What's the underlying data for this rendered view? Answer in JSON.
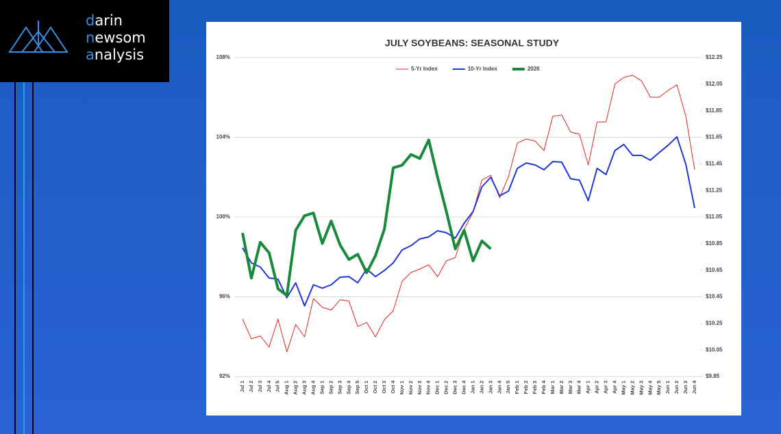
{
  "logo": {
    "lines": [
      "darin",
      "newsom",
      "analysis"
    ]
  },
  "chart_data": {
    "type": "line",
    "title": "JULY SOYBEANS: SEASONAL STUDY",
    "categories": [
      "Jul 1",
      "Jul 2",
      "Jul 3",
      "Jul 4",
      "Jul 5",
      "Aug 1",
      "Aug 2",
      "Aug 3",
      "Aug 4",
      "Sep 1",
      "Sep 2",
      "Sep 3",
      "Sep 4",
      "Sep 5",
      "Oct 1",
      "Oct 2",
      "Oct 3",
      "Oct 4",
      "Nov 1",
      "Nov 2",
      "Nov 3",
      "Nov 4",
      "Dec 1",
      "Dec 2",
      "Dec 3",
      "Dec 4",
      "Jan 1",
      "Jan 2",
      "Jan 3",
      "Jan 4",
      "Jan 5",
      "Feb 1",
      "Feb 2",
      "Feb 3",
      "Feb 4",
      "Mar 1",
      "Mar 2",
      "Mar 3",
      "Mar 4",
      "Apr 1",
      "Apr 2",
      "Apr 3",
      "Apr 4",
      "May 1",
      "May 2",
      "May 3",
      "May 4",
      "May 5",
      "Jun 1",
      "Jun 2",
      "Jun 3",
      "Jun 4"
    ],
    "series": [
      {
        "name": "5-Yr Index",
        "color": "#e8221f",
        "width": 1,
        "values": [
          94.88,
          93.89,
          94.03,
          93.48,
          94.88,
          93.24,
          94.61,
          93.99,
          95.91,
          95.47,
          95.33,
          95.85,
          95.78,
          94.51,
          94.71,
          93.99,
          94.85,
          95.3,
          96.77,
          97.22,
          97.39,
          97.6,
          97.01,
          97.8,
          97.97,
          99.38,
          100.24,
          101.85,
          102.09,
          100.96,
          102.03,
          103.71,
          103.91,
          103.81,
          103.33,
          105.05,
          105.12,
          104.26,
          104.15,
          102.61,
          104.77,
          104.77,
          106.66,
          107.0,
          107.11,
          106.83,
          106.01,
          106.01,
          106.35,
          106.63,
          105.05,
          102.37
        ]
      },
      {
        "name": "10-Yr Index",
        "color": "#1f36d6",
        "width": 2,
        "values": [
          98.45,
          97.7,
          97.49,
          96.94,
          96.88,
          95.95,
          96.7,
          95.54,
          96.6,
          96.43,
          96.6,
          96.98,
          97.01,
          96.7,
          97.39,
          97.01,
          97.32,
          97.7,
          98.35,
          98.56,
          98.9,
          99.0,
          99.31,
          99.21,
          98.94,
          99.69,
          100.27,
          101.51,
          101.99,
          101.06,
          101.3,
          102.44,
          102.71,
          102.61,
          102.37,
          102.78,
          102.75,
          101.92,
          101.85,
          100.82,
          102.44,
          102.13,
          103.33,
          103.64,
          103.09,
          103.09,
          102.85,
          103.23,
          103.6,
          104.02,
          102.64,
          100.45
        ]
      },
      {
        "name": "2026",
        "color": "#198a3c",
        "width": 4,
        "axis": "y2",
        "values": [
          10.93,
          10.59,
          10.86,
          10.78,
          10.51,
          10.46,
          10.95,
          11.06,
          11.08,
          10.85,
          11.02,
          10.84,
          10.73,
          10.77,
          10.63,
          10.76,
          10.96,
          11.42,
          11.44,
          11.52,
          11.49,
          11.63,
          11.35,
          11.09,
          10.81,
          10.95,
          10.72,
          10.87,
          10.81,
          null,
          null,
          null,
          null,
          null,
          null,
          null,
          null,
          null,
          null,
          null,
          null,
          null,
          null,
          null,
          null,
          null,
          null,
          null,
          null,
          null,
          null,
          null
        ]
      }
    ],
    "ylim": [
      92,
      108
    ],
    "yticks": [
      {
        "value": 92,
        "label": "92%"
      },
      {
        "value": 96,
        "label": "96%"
      },
      {
        "value": 100,
        "label": "100%"
      },
      {
        "value": 104,
        "label": "104%"
      },
      {
        "value": 108,
        "label": "108%"
      }
    ],
    "y2lim": [
      9.85,
      12.25
    ],
    "y2ticks": [
      {
        "value": 9.85,
        "label": "$9.85"
      },
      {
        "value": 10.05,
        "label": "$10.05"
      },
      {
        "value": 10.25,
        "label": "$10.25"
      },
      {
        "value": 10.45,
        "label": "$10.45"
      },
      {
        "value": 10.65,
        "label": "$10.65"
      },
      {
        "value": 10.85,
        "label": "$10.85"
      },
      {
        "value": 11.05,
        "label": "$11.05"
      },
      {
        "value": 11.25,
        "label": "$11.25"
      },
      {
        "value": 11.45,
        "label": "$11.45"
      },
      {
        "value": 11.65,
        "label": "$11.65"
      },
      {
        "value": 11.85,
        "label": "$11.85"
      },
      {
        "value": 12.05,
        "label": "$12.05"
      },
      {
        "value": 12.25,
        "label": "$12.25"
      }
    ],
    "grid": true,
    "legend": "top"
  }
}
